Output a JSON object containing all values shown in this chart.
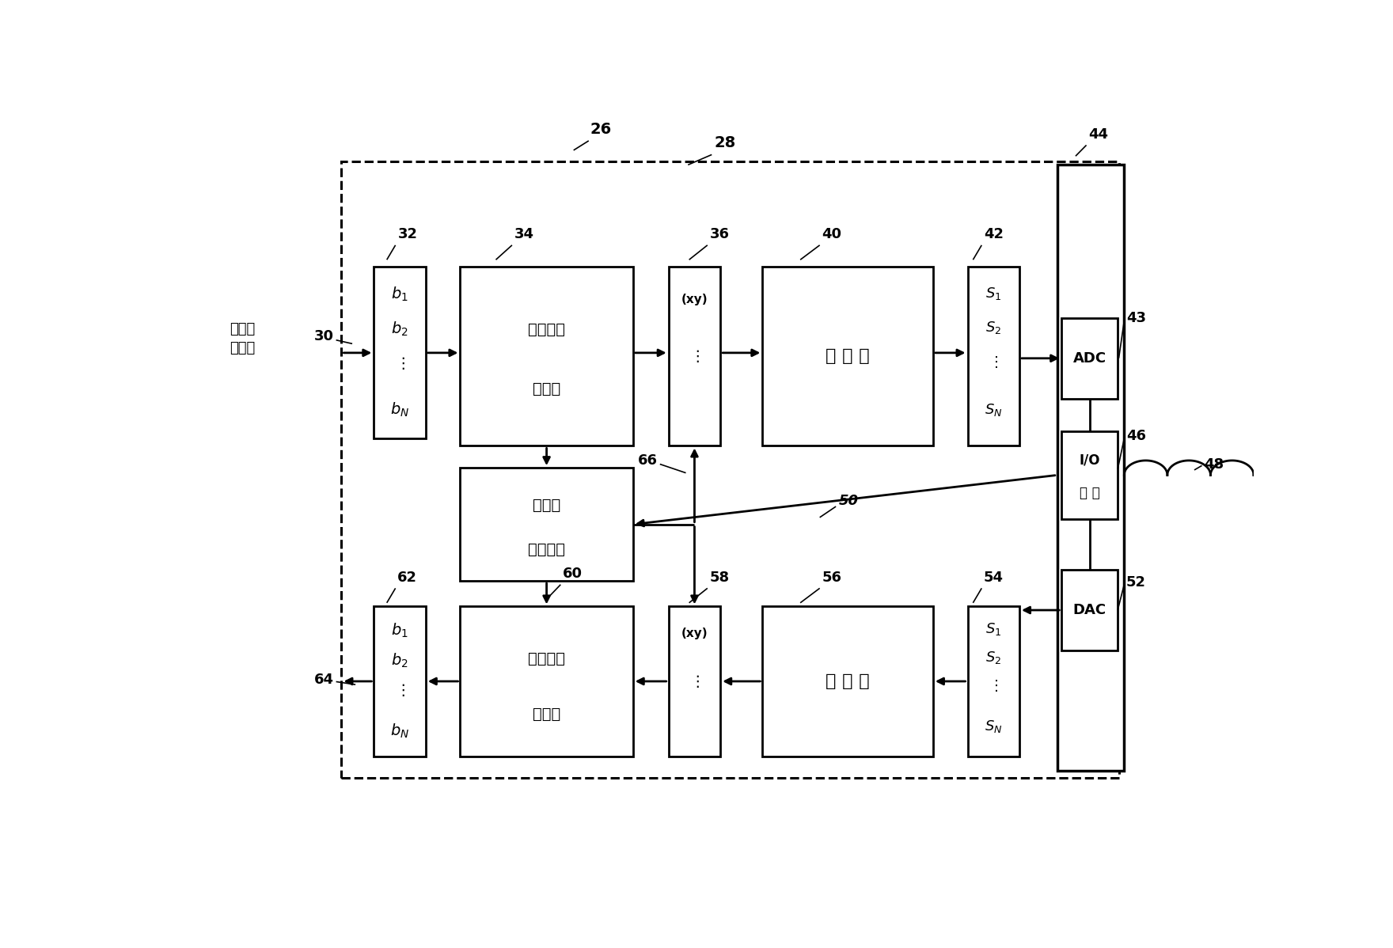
{
  "bg": "#ffffff",
  "lc": "#000000",
  "lw": 2.0,
  "fw": 17.6,
  "fh": 11.98,
  "outer": [
    0.155,
    0.09,
    0.72,
    0.845
  ],
  "B32": [
    0.185,
    0.555,
    0.048,
    0.235
  ],
  "B34": [
    0.265,
    0.545,
    0.16,
    0.245
  ],
  "B36": [
    0.458,
    0.545,
    0.048,
    0.245
  ],
  "B40": [
    0.545,
    0.545,
    0.158,
    0.245
  ],
  "B42": [
    0.735,
    0.545,
    0.048,
    0.245
  ],
  "B44": [
    0.818,
    0.1,
    0.062,
    0.83
  ],
  "B43": [
    0.822,
    0.61,
    0.052,
    0.11
  ],
  "B46": [
    0.822,
    0.445,
    0.052,
    0.12
  ],
  "B52": [
    0.822,
    0.265,
    0.052,
    0.11
  ],
  "B38": [
    0.265,
    0.36,
    0.16,
    0.155
  ],
  "B60": [
    0.265,
    0.12,
    0.16,
    0.205
  ],
  "B62": [
    0.185,
    0.12,
    0.048,
    0.205
  ],
  "B58": [
    0.458,
    0.12,
    0.048,
    0.205
  ],
  "B56": [
    0.545,
    0.12,
    0.158,
    0.205
  ],
  "B54": [
    0.735,
    0.12,
    0.048,
    0.205
  ]
}
